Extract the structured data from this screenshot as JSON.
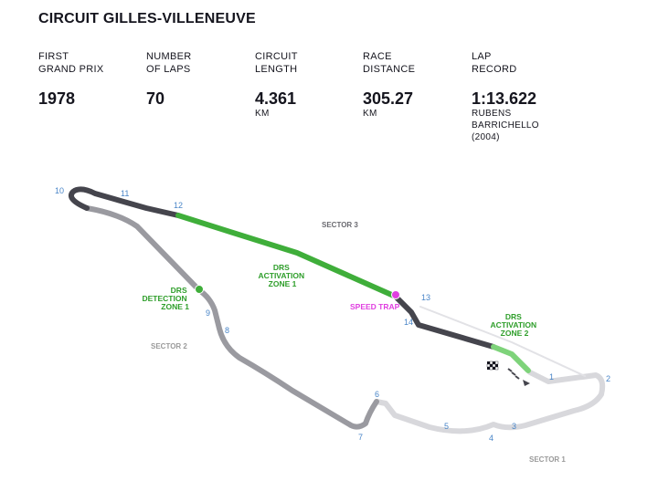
{
  "circuit": {
    "name": "CIRCUIT GILLES-VILLENEUVE"
  },
  "stats": [
    {
      "label": "FIRST\nGRAND PRIX",
      "value": "1978"
    },
    {
      "label": "NUMBER\nOF LAPS",
      "value": "70"
    },
    {
      "label": "CIRCUIT\nLENGTH",
      "value": "4.361",
      "unit": "KM"
    },
    {
      "label": "RACE\nDISTANCE",
      "value": "305.27",
      "unit": "KM"
    },
    {
      "label": "LAP\nRECORD",
      "value": "1:13.622",
      "holder_name": "RUBENS",
      "holder_surname": "BARRICHELLO",
      "holder_year": "(2004)"
    }
  ],
  "map": {
    "sectors": [
      "SECTOR 1",
      "SECTOR 2",
      "SECTOR 3"
    ],
    "drs_detection": [
      "DRS",
      "DETECTION",
      "ZONE 1"
    ],
    "drs_activation_1": [
      "DRS",
      "ACTIVATION",
      "ZONE 1"
    ],
    "drs_activation_2": [
      "DRS",
      "ACTIVATION",
      "ZONE 2"
    ],
    "speed_trap": "SPEED TRAP",
    "turns": [
      "1",
      "2",
      "3",
      "4",
      "5",
      "6",
      "7",
      "8",
      "9",
      "10",
      "11",
      "12",
      "13",
      "14"
    ],
    "colors": {
      "sector1": "#d8d8dc",
      "sector2": "#9a9aa0",
      "sector3": "#45454d",
      "drs_zone": "#3fae3a",
      "drs_zone_light": "#7ed37a",
      "drs_label": "#2e9e2a",
      "speed_trap": "#e040e0",
      "turn_number": "#4a86c8",
      "sector_label": "#9a9a9a"
    },
    "icons": [
      "start-finish-flag-icon",
      "start-direction-arrow-icon"
    ]
  }
}
